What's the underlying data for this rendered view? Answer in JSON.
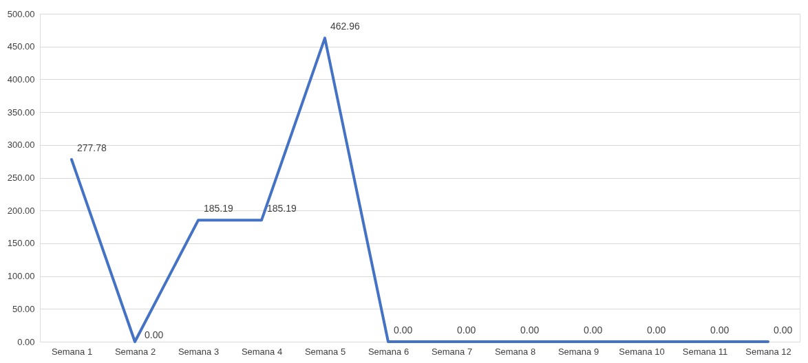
{
  "chart_data": {
    "type": "line",
    "categories": [
      "Semana 1",
      "Semana 2",
      "Semana 3",
      "Semana 4",
      "Semana 5",
      "Semana 6",
      "Semana 7",
      "Semana 8",
      "Semana 9",
      "Semana 10",
      "Semana 11",
      "Semana 12"
    ],
    "series": [
      {
        "color": "#4472c4",
        "values": [
          277.78,
          0,
          185.19,
          185.19,
          462.96,
          0,
          0,
          0,
          0,
          0,
          0,
          0
        ],
        "value_labels": [
          "277.78",
          "0.00",
          "185.19",
          "185.19",
          "462.96",
          "0.00",
          "0.00",
          "0.00",
          "0.00",
          "0.00",
          "0.00",
          "0.00"
        ]
      }
    ],
    "ylim": [
      0,
      500
    ],
    "yticks": [
      {
        "value": 0,
        "label": "0.00"
      },
      {
        "value": 50,
        "label": "50.00"
      },
      {
        "value": 100,
        "label": "100.00"
      },
      {
        "value": 150,
        "label": "150.00"
      },
      {
        "value": 200,
        "label": "200.00"
      },
      {
        "value": 250,
        "label": "250.00"
      },
      {
        "value": 300,
        "label": "300.00"
      },
      {
        "value": 350,
        "label": "350.00"
      },
      {
        "value": 400,
        "label": "400.00"
      },
      {
        "value": 450,
        "label": "450.00"
      },
      {
        "value": 500,
        "label": "500.00"
      }
    ],
    "grid": "y",
    "marker": "none",
    "line_style": "solid",
    "legend": false
  }
}
